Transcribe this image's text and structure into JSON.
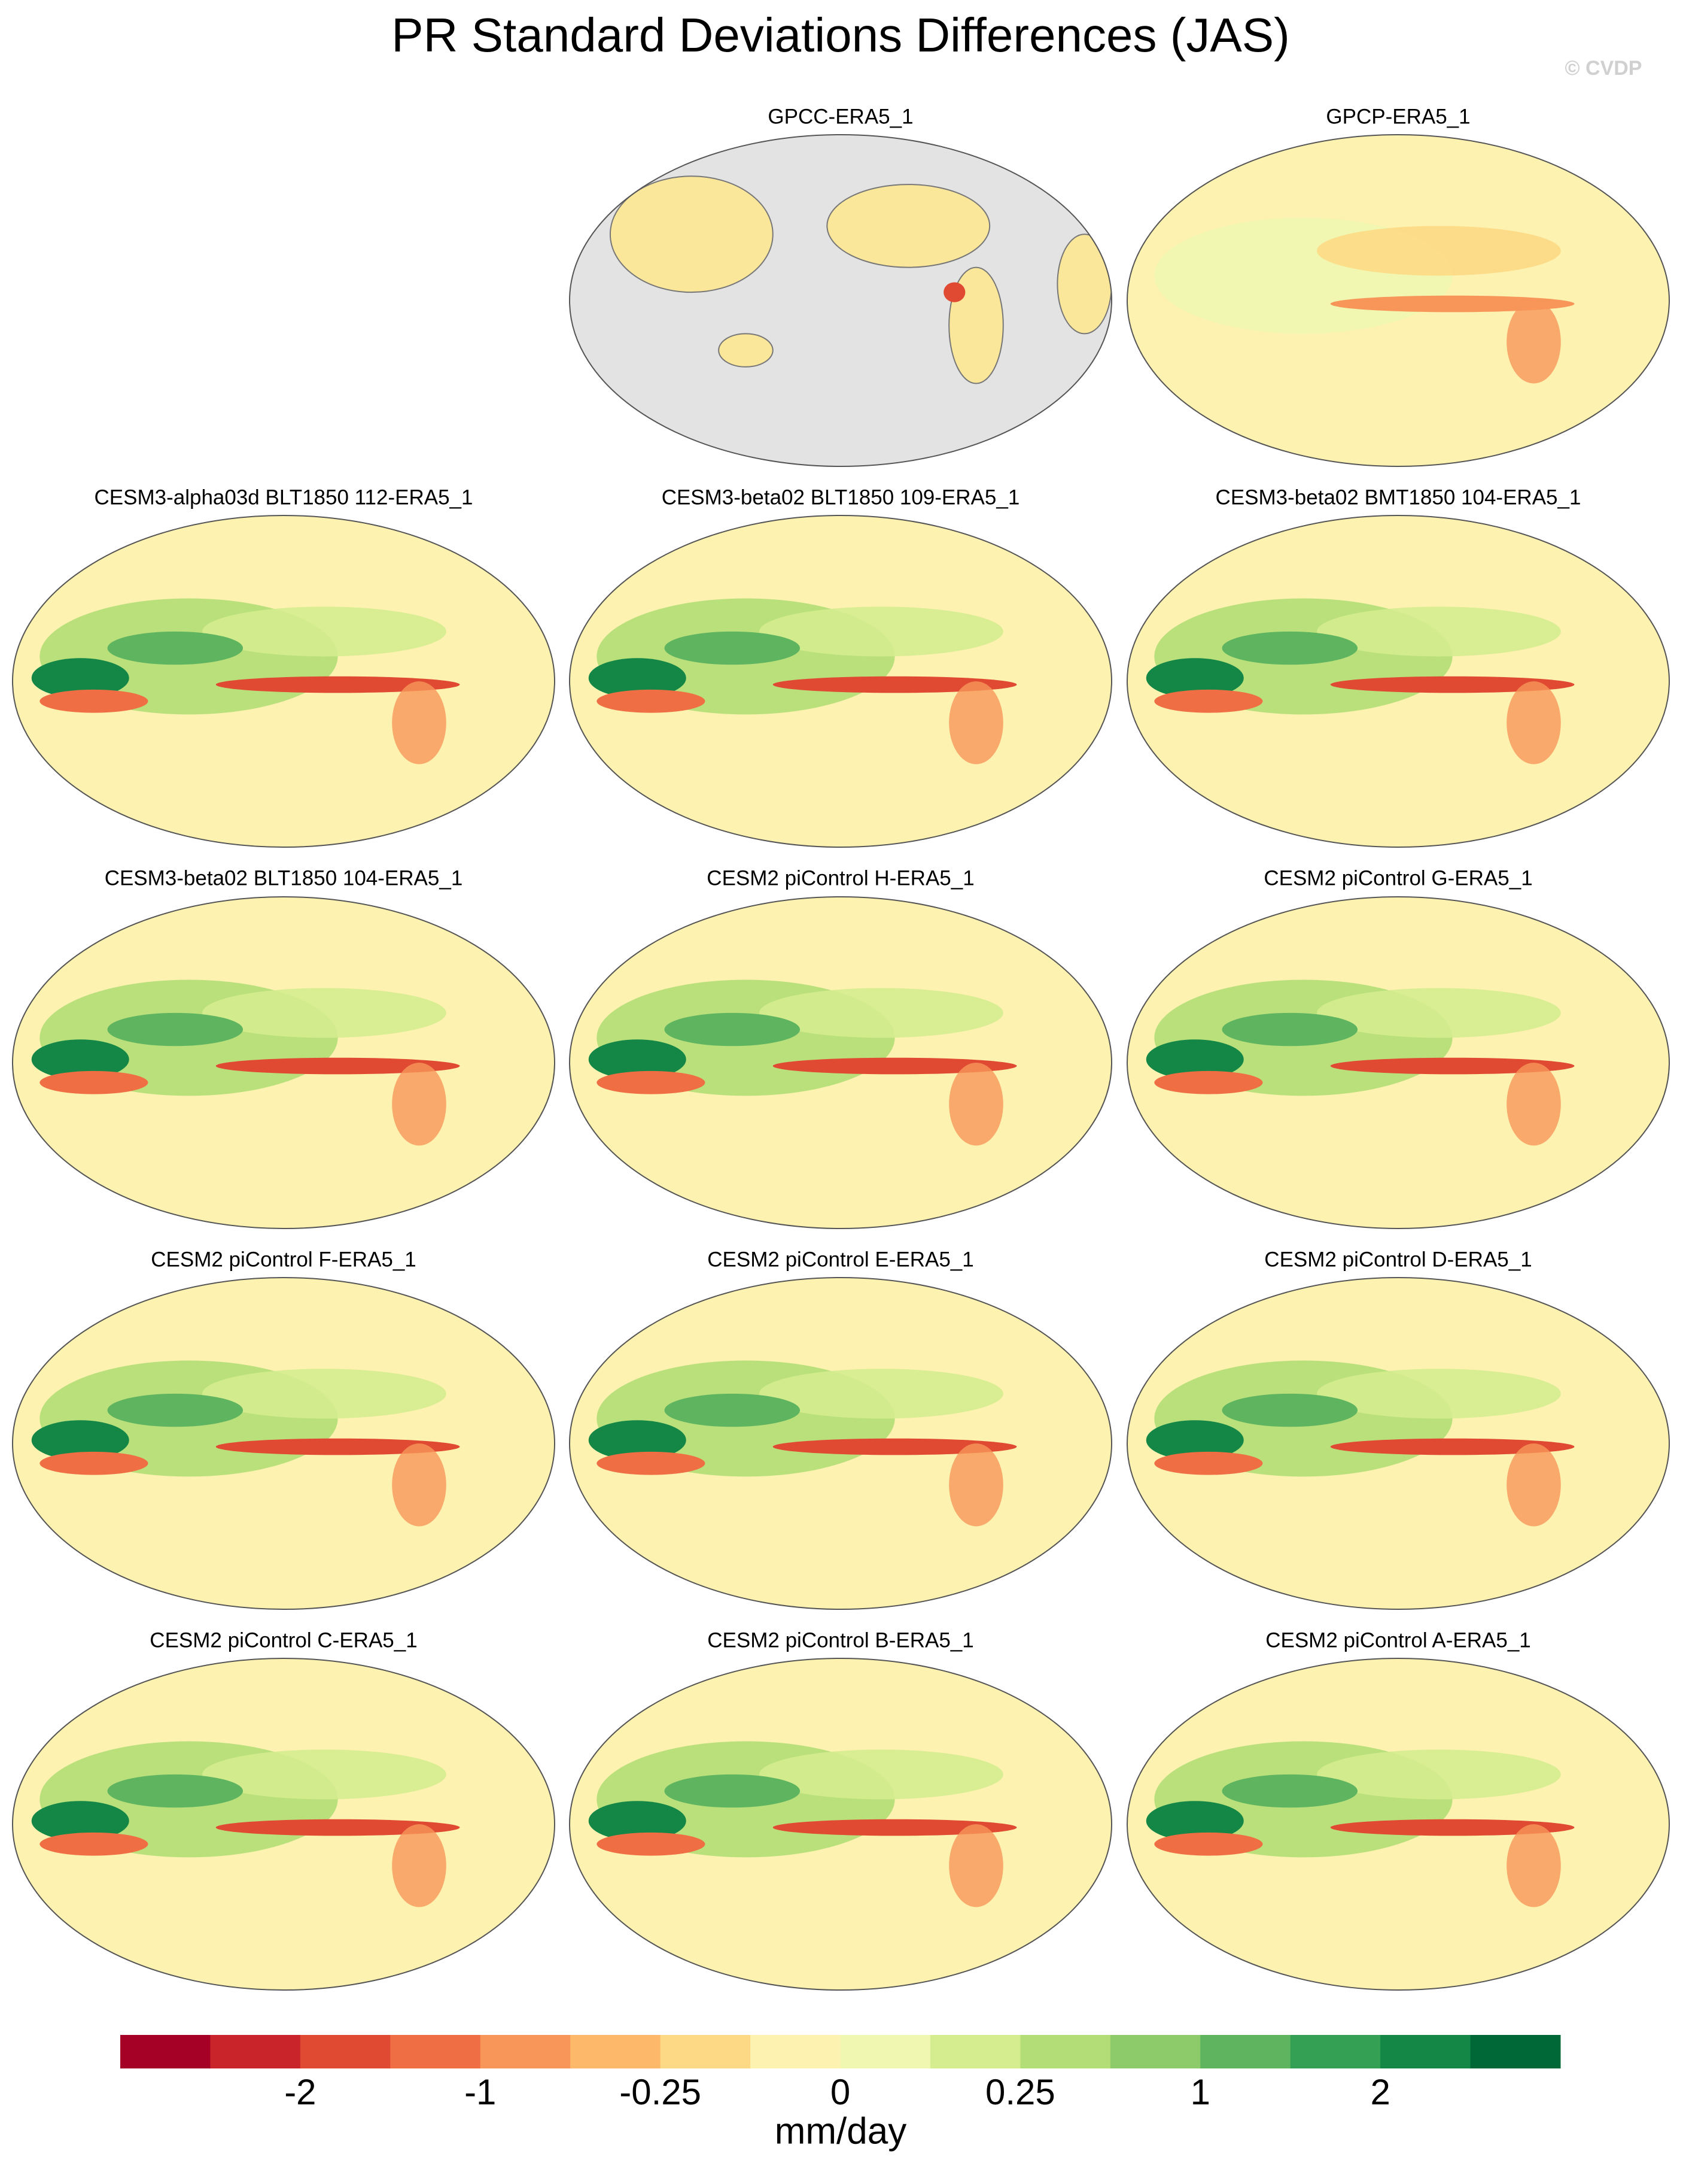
{
  "title": "PR Standard Deviations Differences (JAS)",
  "watermark": "© CVDP",
  "panels": [
    {
      "title": "GPCC-ERA5_1"
    },
    {
      "title": "GPCP-ERA5_1"
    },
    {
      "title": "CESM3-alpha03d BLT1850 112-ERA5_1"
    },
    {
      "title": "CESM3-beta02 BLT1850 109-ERA5_1"
    },
    {
      "title": "CESM3-beta02 BMT1850 104-ERA5_1"
    },
    {
      "title": "CESM3-beta02 BLT1850 104-ERA5_1"
    },
    {
      "title": "CESM2 piControl H-ERA5_1"
    },
    {
      "title": "CESM2 piControl G-ERA5_1"
    },
    {
      "title": "CESM2 piControl F-ERA5_1"
    },
    {
      "title": "CESM2 piControl E-ERA5_1"
    },
    {
      "title": "CESM2 piControl D-ERA5_1"
    },
    {
      "title": "CESM2 piControl C-ERA5_1"
    },
    {
      "title": "CESM2 piControl B-ERA5_1"
    },
    {
      "title": "CESM2 piControl A-ERA5_1"
    }
  ],
  "colorbar": {
    "colors": [
      "#a50026",
      "#c9242a",
      "#e04a33",
      "#f06e44",
      "#f8965a",
      "#fdb869",
      "#fdd985",
      "#fdf2b0",
      "#f0f7b0",
      "#d5ec8f",
      "#b3de77",
      "#8dca69",
      "#5fb460",
      "#33a054",
      "#148747",
      "#006837"
    ],
    "ticks": [
      -2,
      -1,
      -0.25,
      0,
      0.25,
      1,
      2
    ],
    "label": "mm/day"
  }
}
